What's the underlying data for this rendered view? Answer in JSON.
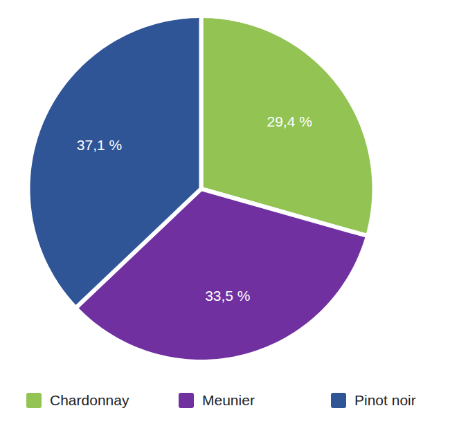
{
  "chart_data": {
    "type": "pie",
    "categories": [
      "Chardonnay",
      "Meunier",
      "Pinot noir"
    ],
    "values": [
      29.4,
      33.5,
      37.1
    ],
    "value_labels": [
      "29,4 %",
      "33,5 %",
      "37,1 %"
    ],
    "colors": [
      "#92c353",
      "#7030a0",
      "#2f5597"
    ],
    "data_labels": true,
    "legend": "bottom"
  }
}
